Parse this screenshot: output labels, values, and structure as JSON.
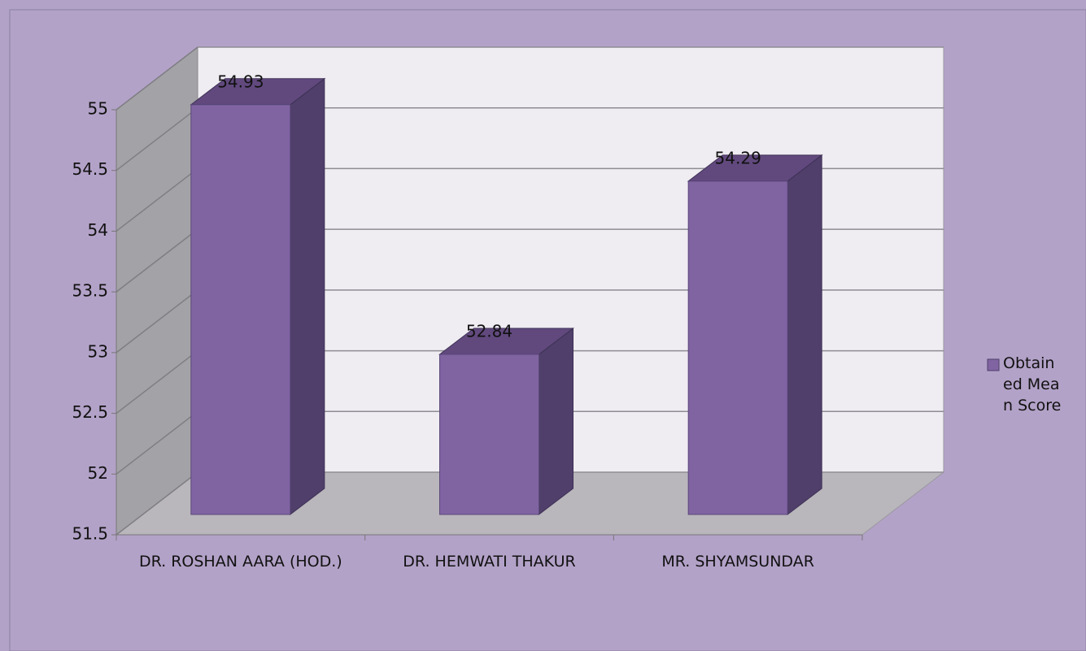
{
  "chart_data": {
    "type": "bar3d",
    "categories": [
      "DR. ROSHAN AARA (HOD.)",
      "DR. HEMWATI THAKUR",
      "MR. SHYAMSUNDAR"
    ],
    "series": [
      {
        "name": "Obtained Mean Score",
        "color": "#8064a2",
        "values": [
          54.93,
          52.84,
          54.29
        ]
      }
    ],
    "ylim": [
      51.5,
      55
    ],
    "yticks": [
      51.5,
      52,
      52.5,
      53,
      53.5,
      54,
      54.5,
      55
    ],
    "grid": true,
    "legend": "right",
    "data_labels": true
  }
}
